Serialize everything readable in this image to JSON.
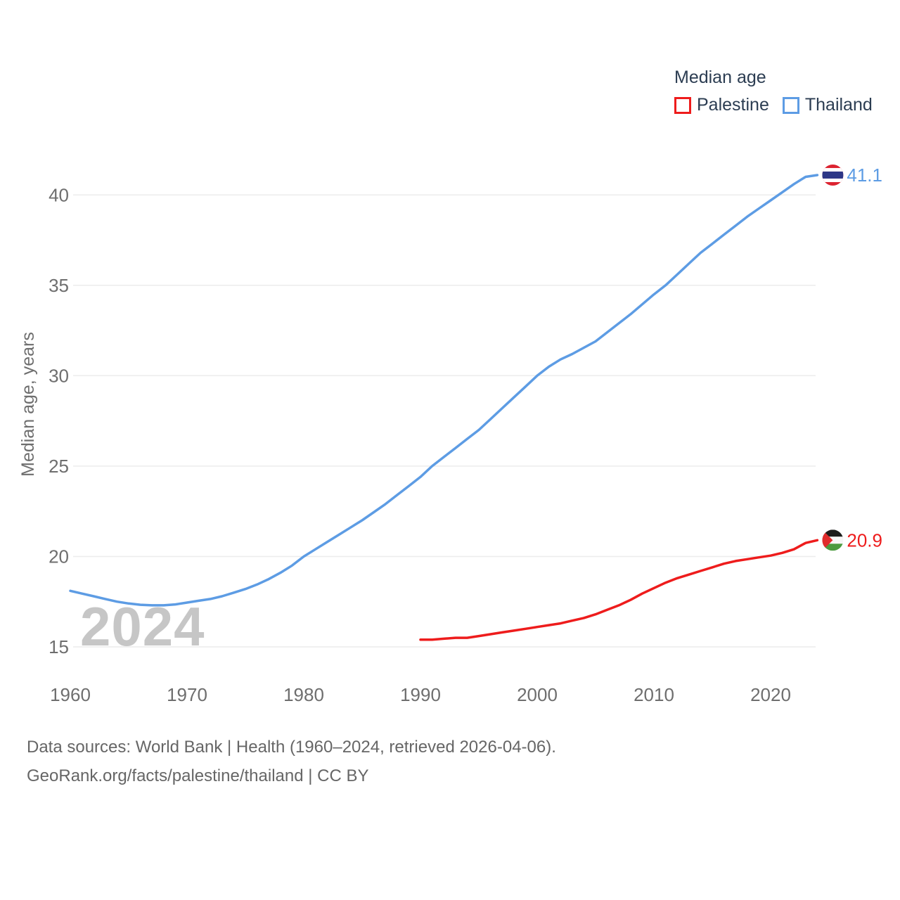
{
  "page": {
    "watermark": "2024"
  },
  "legend": {
    "title": "Median age",
    "items": [
      {
        "label": "Palestine",
        "color": "#ee1c1c"
      },
      {
        "label": "Thailand",
        "color": "#5d9ce4"
      }
    ]
  },
  "footer": {
    "line1": "Data sources: World Bank | Health (1960–2024, retrieved 2026-04-06).",
    "line2": "GeoRank.org/facts/palestine/thailand | CC BY"
  },
  "end_labels": {
    "thailand": "41.1",
    "palestine": "20.9"
  },
  "chart_data": {
    "type": "line",
    "title": "Median age",
    "xlabel": "",
    "ylabel": "Median age, years",
    "x_ticks": [
      1960,
      1970,
      1980,
      1990,
      2000,
      2010,
      2020
    ],
    "y_ticks": [
      15,
      20,
      25,
      30,
      35,
      40
    ],
    "xlim": [
      1960,
      2024
    ],
    "ylim": [
      15,
      41.5
    ],
    "grid": "horizontal",
    "legend_position": "top-right",
    "series": [
      {
        "name": "Thailand",
        "color": "#5d9ce4",
        "flag": "thailand",
        "end_label": "41.1",
        "years": [
          1960,
          1961,
          1962,
          1963,
          1964,
          1965,
          1966,
          1967,
          1968,
          1969,
          1970,
          1971,
          1972,
          1973,
          1974,
          1975,
          1976,
          1977,
          1978,
          1979,
          1980,
          1981,
          1982,
          1983,
          1984,
          1985,
          1986,
          1987,
          1988,
          1989,
          1990,
          1991,
          1992,
          1993,
          1994,
          1995,
          1996,
          1997,
          1998,
          1999,
          2000,
          2001,
          2002,
          2003,
          2004,
          2005,
          2006,
          2007,
          2008,
          2009,
          2010,
          2011,
          2012,
          2013,
          2014,
          2015,
          2016,
          2017,
          2018,
          2019,
          2020,
          2021,
          2022,
          2023,
          2024
        ],
        "values": [
          18.1,
          17.95,
          17.8,
          17.65,
          17.5,
          17.4,
          17.33,
          17.3,
          17.3,
          17.35,
          17.45,
          17.55,
          17.65,
          17.8,
          18.0,
          18.2,
          18.45,
          18.75,
          19.1,
          19.5,
          20.0,
          20.4,
          20.8,
          21.2,
          21.6,
          22.0,
          22.45,
          22.9,
          23.4,
          23.9,
          24.4,
          25.0,
          25.5,
          26.0,
          26.5,
          27.0,
          27.6,
          28.2,
          28.8,
          29.4,
          30.0,
          30.5,
          30.9,
          31.2,
          31.55,
          31.9,
          32.4,
          32.9,
          33.4,
          33.95,
          34.5,
          35.0,
          35.6,
          36.2,
          36.8,
          37.3,
          37.8,
          38.3,
          38.8,
          39.25,
          39.7,
          40.15,
          40.6,
          41.0,
          41.1
        ]
      },
      {
        "name": "Palestine",
        "color": "#ee1c1c",
        "flag": "palestine",
        "end_label": "20.9",
        "years": [
          1990,
          1991,
          1992,
          1993,
          1994,
          1995,
          1996,
          1997,
          1998,
          1999,
          2000,
          2001,
          2002,
          2003,
          2004,
          2005,
          2006,
          2007,
          2008,
          2009,
          2010,
          2011,
          2012,
          2013,
          2014,
          2015,
          2016,
          2017,
          2018,
          2019,
          2020,
          2021,
          2022,
          2023,
          2024
        ],
        "values": [
          15.4,
          15.4,
          15.45,
          15.5,
          15.5,
          15.6,
          15.7,
          15.8,
          15.9,
          16.0,
          16.1,
          16.2,
          16.3,
          16.45,
          16.6,
          16.8,
          17.05,
          17.3,
          17.6,
          17.95,
          18.25,
          18.55,
          18.8,
          19.0,
          19.2,
          19.4,
          19.6,
          19.75,
          19.85,
          19.95,
          20.05,
          20.2,
          20.4,
          20.75,
          20.9
        ]
      }
    ]
  }
}
